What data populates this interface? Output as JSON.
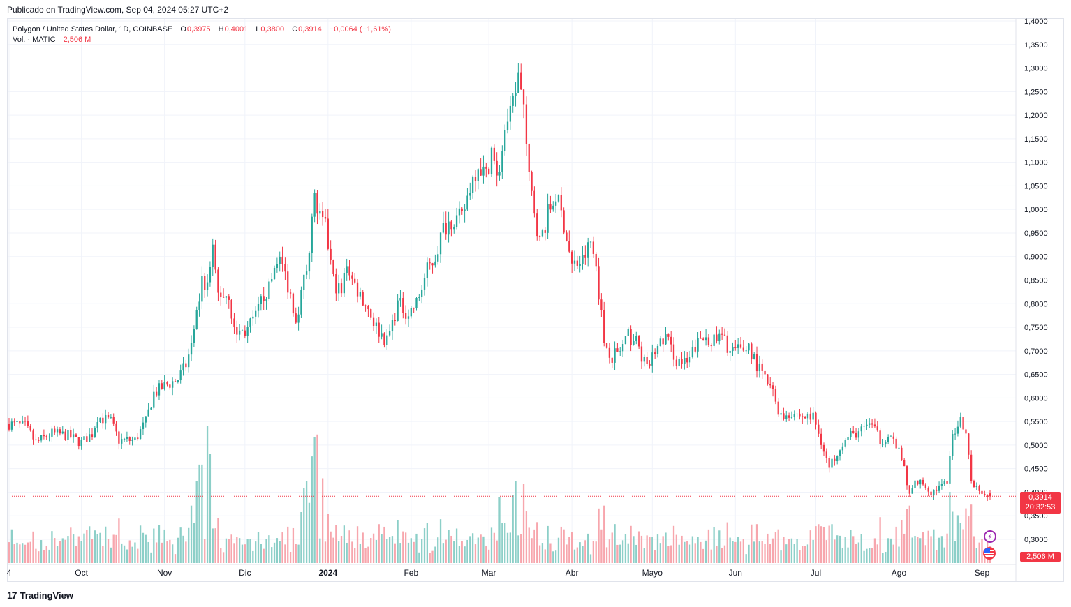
{
  "header": {
    "published": "Publicado en TradingView.com, Sep 04, 2024 05:27 UTC+2"
  },
  "legend": {
    "symbol": "Polygon / United States Dollar, 1D, COINBASE",
    "o_label": "O",
    "o_value": "0,3975",
    "h_label": "H",
    "h_value": "0,4001",
    "l_label": "L",
    "l_value": "0,3800",
    "c_label": "C",
    "c_value": "0,3914",
    "change": "−0,0064 (−1,61%)",
    "vol_label": "Vol. · MATIC",
    "vol_value": "2,506 M"
  },
  "price_tag": {
    "price": "0,3914",
    "countdown": "20:32:53"
  },
  "volume_tag": "2,506 M",
  "footer": {
    "logo_text": "TradingView"
  },
  "colors": {
    "up": "#26a69a",
    "down": "#f23645",
    "up_vol": "#8ccfc8",
    "down_vol": "#f7a6ad",
    "grid": "#f0f3fa",
    "text": "#131722"
  },
  "chart_data": {
    "type": "candlestick",
    "ylim": [
      0.28,
      1.4
    ],
    "y_ticks": [
      "1,4000",
      "1,3500",
      "1,3000",
      "1,2500",
      "1,2000",
      "1,1500",
      "1,1000",
      "1,0500",
      "1,0000",
      "0,9500",
      "0,9000",
      "0,8500",
      "0,8000",
      "0,7500",
      "0,7000",
      "0,6500",
      "0,6000",
      "0,5500",
      "0,5000",
      "0,4500",
      "0,4000",
      "0,3500",
      "0,3000"
    ],
    "y_tick_values": [
      1.4,
      1.35,
      1.3,
      1.25,
      1.2,
      1.15,
      1.1,
      1.05,
      1.0,
      0.95,
      0.9,
      0.85,
      0.8,
      0.75,
      0.7,
      0.65,
      0.6,
      0.55,
      0.5,
      0.45,
      0.4,
      0.35,
      0.3
    ],
    "x_tick_labels": [
      "4",
      "Oct",
      "Nov",
      "Dic",
      "2024",
      "Feb",
      "Mar",
      "Abr",
      "Mayo",
      "Jun",
      "Jul",
      "Ago",
      "Sep"
    ],
    "x_tick_bold": [
      false,
      false,
      false,
      false,
      true,
      false,
      false,
      false,
      false,
      false,
      false,
      false,
      false
    ],
    "x_tick_dates": [
      "2023-09-04",
      "2023-10-01",
      "2023-11-01",
      "2023-12-01",
      "2024-01-01",
      "2024-02-01",
      "2024-03-01",
      "2024-04-01",
      "2024-05-01",
      "2024-06-01",
      "2024-07-01",
      "2024-08-01",
      "2024-09-01"
    ],
    "first_date": "2023-09-04",
    "last_date": "2024-09-04",
    "close_anchors": [
      [
        "2023-09-04",
        0.545
      ],
      [
        "2023-09-10",
        0.54
      ],
      [
        "2023-09-14",
        0.505
      ],
      [
        "2023-09-20",
        0.525
      ],
      [
        "2023-09-26",
        0.52
      ],
      [
        "2023-10-01",
        0.505
      ],
      [
        "2023-10-05",
        0.525
      ],
      [
        "2023-10-07",
        0.56
      ],
      [
        "2023-10-12",
        0.55
      ],
      [
        "2023-10-15",
        0.51
      ],
      [
        "2023-10-21",
        0.51
      ],
      [
        "2023-10-25",
        0.55
      ],
      [
        "2023-10-28",
        0.61
      ],
      [
        "2023-11-01",
        0.625
      ],
      [
        "2023-11-06",
        0.64
      ],
      [
        "2023-11-09",
        0.67
      ],
      [
        "2023-11-12",
        0.73
      ],
      [
        "2023-11-15",
        0.85
      ],
      [
        "2023-11-17",
        0.83
      ],
      [
        "2023-11-19",
        0.91
      ],
      [
        "2023-11-21",
        0.82
      ],
      [
        "2023-11-25",
        0.82
      ],
      [
        "2023-11-27",
        0.74
      ],
      [
        "2023-12-01",
        0.74
      ],
      [
        "2023-12-05",
        0.77
      ],
      [
        "2023-12-08",
        0.82
      ],
      [
        "2023-12-10",
        0.83
      ],
      [
        "2023-12-13",
        0.9
      ],
      [
        "2023-12-15",
        0.88
      ],
      [
        "2023-12-18",
        0.82
      ],
      [
        "2023-12-20",
        0.77
      ],
      [
        "2023-12-22",
        0.82
      ],
      [
        "2023-12-24",
        0.88
      ],
      [
        "2023-12-27",
        1.02
      ],
      [
        "2023-12-29",
        0.98
      ],
      [
        "2023-12-31",
        0.96
      ],
      [
        "2024-01-03",
        0.85
      ],
      [
        "2024-01-06",
        0.82
      ],
      [
        "2024-01-08",
        0.89
      ],
      [
        "2024-01-10",
        0.85
      ],
      [
        "2024-01-13",
        0.82
      ],
      [
        "2024-01-16",
        0.79
      ],
      [
        "2024-01-19",
        0.75
      ],
      [
        "2024-01-23",
        0.72
      ],
      [
        "2024-01-27",
        0.8
      ],
      [
        "2024-01-31",
        0.78
      ],
      [
        "2024-02-03",
        0.8
      ],
      [
        "2024-02-07",
        0.87
      ],
      [
        "2024-02-10",
        0.9
      ],
      [
        "2024-02-13",
        0.96
      ],
      [
        "2024-02-16",
        0.98
      ],
      [
        "2024-02-20",
        0.98
      ],
      [
        "2024-02-23",
        1.05
      ],
      [
        "2024-02-26",
        1.1
      ],
      [
        "2024-02-29",
        1.07
      ],
      [
        "2024-03-02",
        1.13
      ],
      [
        "2024-03-04",
        1.06
      ],
      [
        "2024-03-07",
        1.15
      ],
      [
        "2024-03-10",
        1.22
      ],
      [
        "2024-03-12",
        1.28
      ],
      [
        "2024-03-14",
        1.2
      ],
      [
        "2024-03-16",
        1.06
      ],
      [
        "2024-03-18",
        1.0
      ],
      [
        "2024-03-20",
        0.93
      ],
      [
        "2024-03-23",
        0.99
      ],
      [
        "2024-03-26",
        1.03
      ],
      [
        "2024-03-29",
        0.97
      ],
      [
        "2024-04-01",
        0.88
      ],
      [
        "2024-04-05",
        0.89
      ],
      [
        "2024-04-08",
        0.93
      ],
      [
        "2024-04-10",
        0.88
      ],
      [
        "2024-04-13",
        0.72
      ],
      [
        "2024-04-16",
        0.69
      ],
      [
        "2024-04-19",
        0.7
      ],
      [
        "2024-04-22",
        0.73
      ],
      [
        "2024-04-25",
        0.72
      ],
      [
        "2024-04-29",
        0.66
      ],
      [
        "2024-05-02",
        0.7
      ],
      [
        "2024-05-06",
        0.73
      ],
      [
        "2024-05-10",
        0.68
      ],
      [
        "2024-05-14",
        0.67
      ],
      [
        "2024-05-17",
        0.71
      ],
      [
        "2024-05-21",
        0.73
      ],
      [
        "2024-05-24",
        0.72
      ],
      [
        "2024-05-27",
        0.73
      ],
      [
        "2024-05-30",
        0.7
      ],
      [
        "2024-06-03",
        0.7
      ],
      [
        "2024-06-06",
        0.71
      ],
      [
        "2024-06-09",
        0.67
      ],
      [
        "2024-06-12",
        0.64
      ],
      [
        "2024-06-15",
        0.61
      ],
      [
        "2024-06-18",
        0.56
      ],
      [
        "2024-06-22",
        0.57
      ],
      [
        "2024-06-26",
        0.56
      ],
      [
        "2024-06-30",
        0.56
      ],
      [
        "2024-07-03",
        0.51
      ],
      [
        "2024-07-06",
        0.45
      ],
      [
        "2024-07-10",
        0.5
      ],
      [
        "2024-07-14",
        0.52
      ],
      [
        "2024-07-18",
        0.53
      ],
      [
        "2024-07-21",
        0.55
      ],
      [
        "2024-07-25",
        0.51
      ],
      [
        "2024-07-28",
        0.52
      ],
      [
        "2024-07-31",
        0.5
      ],
      [
        "2024-08-03",
        0.45
      ],
      [
        "2024-08-05",
        0.39
      ],
      [
        "2024-08-07",
        0.42
      ],
      [
        "2024-08-10",
        0.42
      ],
      [
        "2024-08-13",
        0.4
      ],
      [
        "2024-08-16",
        0.41
      ],
      [
        "2024-08-19",
        0.42
      ],
      [
        "2024-08-21",
        0.52
      ],
      [
        "2024-08-24",
        0.56
      ],
      [
        "2024-08-26",
        0.52
      ],
      [
        "2024-08-28",
        0.43
      ],
      [
        "2024-08-30",
        0.41
      ],
      [
        "2024-09-02",
        0.4
      ],
      [
        "2024-09-04",
        0.3914
      ]
    ],
    "volume_spikes": [
      [
        "2023-11-17",
        1.0
      ],
      [
        "2023-11-18",
        0.8
      ],
      [
        "2023-11-15",
        0.72
      ],
      [
        "2023-11-14",
        0.72
      ],
      [
        "2023-11-13",
        0.6
      ],
      [
        "2023-11-11",
        0.42
      ],
      [
        "2023-12-27",
        0.92
      ],
      [
        "2023-12-28",
        0.94
      ],
      [
        "2023-12-26",
        0.78
      ],
      [
        "2023-12-25",
        0.44
      ],
      [
        "2023-12-24",
        0.6
      ],
      [
        "2023-12-23",
        0.55
      ],
      [
        "2023-12-30",
        0.62
      ],
      [
        "2024-03-11",
        0.6
      ],
      [
        "2024-03-14",
        0.58
      ],
      [
        "2024-03-10",
        0.5
      ],
      [
        "2024-03-05",
        0.48
      ],
      [
        "2024-04-13",
        0.42
      ],
      [
        "2024-08-05",
        0.42
      ],
      [
        "2024-08-26",
        0.4
      ],
      [
        "2024-08-23",
        0.35
      ]
    ],
    "last_price": 0.3914,
    "last_price_label": "0,3914",
    "countdown": "20:32:53",
    "volume_last": "2,506 M",
    "grid": true,
    "legend_position": "top-left"
  }
}
